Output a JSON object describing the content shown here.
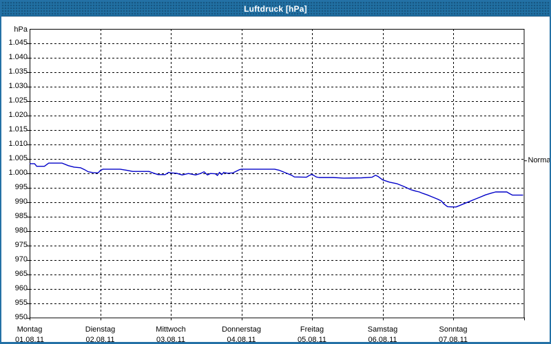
{
  "window": {
    "title": "Luftdruck [hPa]"
  },
  "colors": {
    "titlebar": "#2170a3",
    "window_border": "#2471a6",
    "plot_frame": "#000000",
    "grid": "#000000",
    "line": "#0000c8",
    "background": "#ffffff",
    "title_text": "#ffffff"
  },
  "chart_data": {
    "type": "line",
    "title": "Luftdruck [hPa]",
    "y_unit_label": "hPa",
    "ylabel": "hPa",
    "xlabel": "",
    "ylim": [
      950,
      1050
    ],
    "grid": "dashed",
    "legend": "none",
    "ytick_values": [
      950,
      955,
      960,
      965,
      970,
      975,
      980,
      985,
      990,
      995,
      1000,
      1005,
      1010,
      1015,
      1020,
      1025,
      1030,
      1035,
      1040,
      1045
    ],
    "ytick_labels": [
      "950",
      "955",
      "960",
      "965",
      "970",
      "975",
      "980",
      "985",
      "990",
      "995",
      "1.000",
      "1.005",
      "1.010",
      "1.015",
      "1.020",
      "1.025",
      "1.030",
      "1.035",
      "1.040",
      "1.045"
    ],
    "x_categories": [
      {
        "day": "Montag",
        "date": "01.08.11"
      },
      {
        "day": "Dienstag",
        "date": "02.08.11"
      },
      {
        "day": "Mittwoch",
        "date": "03.08.11"
      },
      {
        "day": "Donnerstag",
        "date": "04.08.11"
      },
      {
        "day": "Freitag",
        "date": "05.08.11"
      },
      {
        "day": "Samstag",
        "date": "06.08.11"
      },
      {
        "day": "Sonntag",
        "date": "07.08.11"
      }
    ],
    "normal_marker": {
      "label": "Normal",
      "value": 1004.3
    },
    "series": [
      {
        "name": "Luftdruck",
        "color": "#0000c8",
        "points": [
          [
            0.0,
            1003.3
          ],
          [
            0.07,
            1003.3
          ],
          [
            0.1,
            1002.4
          ],
          [
            0.21,
            1002.4
          ],
          [
            0.27,
            1003.5
          ],
          [
            0.46,
            1003.5
          ],
          [
            0.55,
            1002.6
          ],
          [
            0.63,
            1002.1
          ],
          [
            0.72,
            1001.9
          ],
          [
            0.78,
            1001.2
          ],
          [
            0.83,
            1000.5
          ],
          [
            0.9,
            1000.2
          ],
          [
            0.97,
            1000.1
          ],
          [
            1.0,
            1000.9
          ],
          [
            1.04,
            1001.4
          ],
          [
            1.28,
            1001.4
          ],
          [
            1.38,
            1001.0
          ],
          [
            1.46,
            1000.6
          ],
          [
            1.69,
            1000.6
          ],
          [
            1.76,
            1000.0
          ],
          [
            1.82,
            999.5
          ],
          [
            1.92,
            999.5
          ],
          [
            1.97,
            1000.3
          ],
          [
            2.0,
            1000.1
          ],
          [
            2.08,
            1000.0
          ],
          [
            2.16,
            999.4
          ],
          [
            2.25,
            999.9
          ],
          [
            2.35,
            999.4
          ],
          [
            2.42,
            999.9
          ],
          [
            2.47,
            1000.5
          ],
          [
            2.52,
            999.4
          ],
          [
            2.56,
            999.9
          ],
          [
            2.63,
            999.8
          ],
          [
            2.66,
            999.2
          ],
          [
            2.69,
            1000.3
          ],
          [
            2.72,
            999.5
          ],
          [
            2.75,
            1000.3
          ],
          [
            2.8,
            1000.0
          ],
          [
            2.88,
            1000.1
          ],
          [
            2.97,
            1001.2
          ],
          [
            3.0,
            1001.4
          ],
          [
            3.47,
            1001.4
          ],
          [
            3.54,
            1001.0
          ],
          [
            3.6,
            1000.4
          ],
          [
            3.66,
            999.8
          ],
          [
            3.71,
            999.3
          ],
          [
            3.75,
            998.7
          ],
          [
            3.92,
            998.6
          ],
          [
            3.96,
            999.2
          ],
          [
            4.0,
            999.6
          ],
          [
            4.06,
            998.7
          ],
          [
            4.1,
            998.5
          ],
          [
            4.3,
            998.5
          ],
          [
            4.45,
            998.3
          ],
          [
            4.7,
            998.4
          ],
          [
            4.85,
            998.6
          ],
          [
            4.9,
            999.3
          ],
          [
            4.94,
            998.8
          ],
          [
            5.0,
            997.7
          ],
          [
            5.1,
            996.9
          ],
          [
            5.2,
            996.4
          ],
          [
            5.3,
            995.4
          ],
          [
            5.4,
            994.3
          ],
          [
            5.47,
            993.8
          ],
          [
            5.52,
            993.5
          ],
          [
            5.57,
            993.0
          ],
          [
            5.63,
            992.5
          ],
          [
            5.7,
            991.8
          ],
          [
            5.78,
            991.0
          ],
          [
            5.83,
            990.4
          ],
          [
            5.87,
            989.3
          ],
          [
            5.92,
            988.4
          ],
          [
            6.0,
            988.3
          ],
          [
            6.04,
            988.3
          ],
          [
            6.08,
            988.7
          ],
          [
            6.15,
            989.4
          ],
          [
            6.22,
            990.1
          ],
          [
            6.3,
            990.9
          ],
          [
            6.38,
            991.7
          ],
          [
            6.46,
            992.5
          ],
          [
            6.54,
            993.1
          ],
          [
            6.6,
            993.5
          ],
          [
            6.76,
            993.5
          ],
          [
            6.8,
            992.9
          ],
          [
            6.84,
            992.4
          ],
          [
            6.99,
            992.4
          ]
        ]
      }
    ]
  }
}
